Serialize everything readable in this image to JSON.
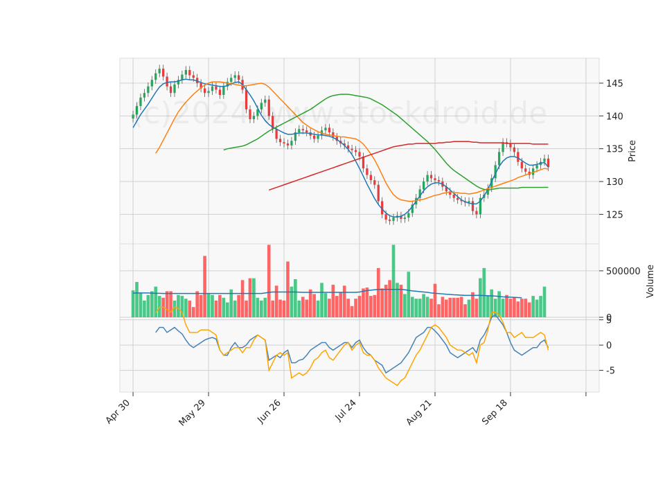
{
  "watermark": "(c)2024 www.stockdroid.de",
  "chart_data": [
    {
      "type": "candlestick",
      "panel": "price",
      "ylabel": "Price",
      "yticks": [
        125,
        130,
        135,
        140,
        145
      ],
      "ylim": [
        120.5,
        148.8
      ],
      "xlim": [
        -3.5,
        123.5
      ],
      "x_tick_labels": [
        "Apr 30",
        "May 29",
        "Jun 26",
        "Jul 24",
        "Aug 21",
        "Sep 18",
        ""
      ],
      "x_tick_positions": [
        0,
        20,
        40,
        60,
        80,
        100,
        120
      ],
      "grid": true,
      "up_color": "#26a65b",
      "down_color": "#e83b3b",
      "ohlc_close_values": [
        140.2,
        141.5,
        142.8,
        143.5,
        144.5,
        145.5,
        146.5,
        147.2,
        146.0,
        144.5,
        143.5,
        144.8,
        145.5,
        146.3,
        147.0,
        146.2,
        145.8,
        145.0,
        144.2,
        143.5,
        143.8,
        144.5,
        144.0,
        143.2,
        144.5,
        145.2,
        145.8,
        146.2,
        145.5,
        144.0,
        141.0,
        139.5,
        140.0,
        141.0,
        142.0,
        142.5,
        140.0,
        138.0,
        136.5,
        136.0,
        135.8,
        135.5,
        136.2,
        137.5,
        138.0,
        137.8,
        137.5,
        137.0,
        136.5,
        137.0,
        137.8,
        138.2,
        137.5,
        136.8,
        136.2,
        135.8,
        135.5,
        135.0,
        134.8,
        134.5,
        133.8,
        132.0,
        131.0,
        130.2,
        129.5,
        127.0,
        125.0,
        124.2,
        124.0,
        124.5,
        124.8,
        124.3,
        124.5,
        125.2,
        126.5,
        127.5,
        128.8,
        130.0,
        131.0,
        130.5,
        130.2,
        130.0,
        129.2,
        128.5,
        128.0,
        127.5,
        127.2,
        127.0,
        126.8,
        127.0,
        125.5,
        125.0,
        127.5,
        128.0,
        129.0,
        130.5,
        132.5,
        134.5,
        136.0,
        135.8,
        135.2,
        134.5,
        133.0,
        132.0,
        131.5,
        131.0,
        132.0,
        132.5,
        133.0,
        133.5,
        132.2
      ]
    },
    {
      "type": "line",
      "panel": "price",
      "series": [
        {
          "color": "#1f77b4",
          "values": [
            138.2,
            139.2,
            140.2,
            141.0,
            141.8,
            142.7,
            143.6,
            144.4,
            144.9,
            145.1,
            145.2,
            145.2,
            145.3,
            145.5,
            145.6,
            145.5,
            145.5,
            145.3,
            145.1,
            144.9,
            144.8,
            144.7,
            144.6,
            144.5,
            144.5,
            144.6,
            144.9,
            145.1,
            145.2,
            144.8,
            144.0,
            143.2,
            142.3,
            141.2,
            140.1,
            139.3,
            138.7,
            138.3,
            138.0,
            137.7,
            137.4,
            137.2,
            137.2,
            137.3,
            137.4,
            137.4,
            137.4,
            137.3,
            137.2,
            137.1,
            137.1,
            137.0,
            136.9,
            136.7,
            136.4,
            136.0,
            135.5,
            134.9,
            134.1,
            133.1,
            132.0,
            130.8,
            129.6,
            128.5,
            127.4,
            126.5,
            125.8,
            125.2,
            124.8,
            124.6,
            124.6,
            124.7,
            125.0,
            125.5,
            126.2,
            127.0,
            127.8,
            128.6,
            129.2,
            129.6,
            129.8,
            129.8,
            129.6,
            129.2,
            128.7,
            128.2,
            127.7,
            127.2,
            126.9,
            126.7,
            126.6,
            126.6,
            127.0,
            127.8,
            128.8,
            130.0,
            131.2,
            132.3,
            133.1,
            133.6,
            133.8,
            133.8,
            133.6,
            133.2,
            132.8,
            132.5,
            132.5,
            132.6,
            132.8,
            132.9,
            132.2
          ]
        },
        {
          "color": "#ff7f0e",
          "values": [
            134.3,
            135.2,
            136.3,
            137.4,
            138.5,
            139.6,
            140.6,
            141.4,
            142.1,
            142.7,
            143.3,
            143.8,
            144.3,
            144.7,
            145.0,
            145.2,
            145.2,
            145.2,
            145.1,
            145.0,
            144.9,
            144.8,
            144.7,
            144.6,
            144.6,
            144.7,
            144.8,
            144.9,
            145.0,
            144.8,
            144.4,
            143.8,
            143.2,
            142.6,
            142.0,
            141.4,
            140.8,
            140.2,
            139.6,
            139.0,
            138.6,
            138.2,
            137.9,
            137.6,
            137.4,
            137.2,
            137.1,
            137.0,
            136.9,
            136.8,
            136.8,
            136.7,
            136.6,
            136.5,
            136.2,
            135.7,
            135.0,
            134.2,
            133.3,
            132.2,
            131.0,
            129.8,
            128.8,
            128.0,
            127.5,
            127.2,
            127.1,
            127.0,
            127.0,
            127.1,
            127.2,
            127.3,
            127.5,
            127.7,
            127.9,
            128.0,
            128.2,
            128.3,
            128.4,
            128.3,
            128.3,
            128.2,
            128.2,
            128.1,
            128.2,
            128.3,
            128.5,
            128.7,
            128.9,
            129.1,
            129.3,
            129.5,
            129.7,
            129.9,
            130.1,
            130.3,
            130.6,
            130.8,
            131.0,
            131.2,
            131.4,
            131.6,
            131.8,
            132.0,
            131.9
          ]
        },
        {
          "color": "#2ca02c",
          "values": [
            134.8,
            135.0,
            135.1,
            135.2,
            135.3,
            135.4,
            135.6,
            135.9,
            136.2,
            136.5,
            136.9,
            137.3,
            137.7,
            138.0,
            138.3,
            138.6,
            138.9,
            139.2,
            139.5,
            139.8,
            140.1,
            140.4,
            140.7,
            141.0,
            141.4,
            141.8,
            142.2,
            142.6,
            142.9,
            143.1,
            143.2,
            143.3,
            143.3,
            143.3,
            143.2,
            143.1,
            143.0,
            142.9,
            142.8,
            142.6,
            142.3,
            142.0,
            141.7,
            141.3,
            140.9,
            140.5,
            140.1,
            139.6,
            139.1,
            138.6,
            138.1,
            137.6,
            137.1,
            136.6,
            136.1,
            135.5,
            134.9,
            134.2,
            133.5,
            132.8,
            132.2,
            131.7,
            131.3,
            130.9,
            130.5,
            130.1,
            129.7,
            129.3,
            129.0,
            128.8,
            128.7,
            128.8,
            128.9,
            129.0,
            129.0,
            129.0,
            129.0,
            129.0,
            129.0,
            129.1,
            129.1,
            129.1,
            129.1,
            129.1,
            129.1,
            129.1,
            129.1
          ]
        },
        {
          "color": "#d62728",
          "values": [
            128.7,
            128.9,
            129.1,
            129.3,
            129.5,
            129.7,
            129.9,
            130.1,
            130.3,
            130.5,
            130.7,
            130.9,
            131.1,
            131.3,
            131.5,
            131.7,
            131.9,
            132.1,
            132.3,
            132.5,
            132.7,
            132.9,
            133.1,
            133.3,
            133.5,
            133.7,
            133.9,
            134.1,
            134.3,
            134.5,
            134.7,
            134.9,
            135.1,
            135.3,
            135.4,
            135.5,
            135.6,
            135.7,
            135.7,
            135.8,
            135.8,
            135.8,
            135.8,
            135.8,
            135.8,
            135.9,
            135.9,
            136.0,
            136.0,
            136.1,
            136.1,
            136.1,
            136.1,
            136.1,
            136.0,
            136.0,
            135.9,
            135.9,
            135.9,
            135.9,
            135.9,
            135.9,
            135.9,
            135.8,
            135.8,
            135.8,
            135.8,
            135.8,
            135.8,
            135.8,
            135.7,
            135.7,
            135.7,
            135.7,
            135.7
          ]
        }
      ]
    },
    {
      "type": "bar",
      "panel": "volume",
      "ylabel": "Volume",
      "yticks": [
        0,
        500000
      ],
      "ylim": [
        0,
        790000
      ],
      "values": [
        290000,
        380000,
        260000,
        180000,
        240000,
        280000,
        330000,
        230000,
        210000,
        280000,
        280000,
        180000,
        240000,
        230000,
        200000,
        180000,
        110000,
        280000,
        240000,
        660000,
        250000,
        240000,
        180000,
        240000,
        210000,
        160000,
        300000,
        180000,
        240000,
        400000,
        180000,
        420000,
        420000,
        210000,
        180000,
        210000,
        780000,
        180000,
        340000,
        190000,
        180000,
        600000,
        330000,
        410000,
        180000,
        220000,
        190000,
        300000,
        250000,
        180000,
        370000,
        260000,
        200000,
        350000,
        230000,
        270000,
        340000,
        200000,
        120000,
        200000,
        230000,
        310000,
        320000,
        230000,
        240000,
        530000,
        310000,
        350000,
        400000,
        780000,
        370000,
        350000,
        250000,
        490000,
        220000,
        200000,
        200000,
        250000,
        220000,
        200000,
        360000,
        140000,
        220000,
        190000,
        210000,
        210000,
        210000,
        220000,
        140000,
        190000,
        270000,
        200000,
        420000,
        530000,
        230000,
        300000,
        200000,
        280000,
        200000,
        240000,
        200000,
        210000,
        170000,
        200000,
        200000,
        160000,
        230000,
        190000,
        230000,
        330000
      ],
      "ma_values": [
        260000,
        262000,
        262000,
        262000,
        262000,
        260000,
        258000,
        258000,
        256000,
        256000,
        256000,
        256000,
        256000,
        256000,
        256000,
        256000,
        256000,
        256000,
        256000,
        256000,
        256000,
        256000,
        256000,
        256000,
        256000,
        256000,
        256000,
        256000,
        256000,
        256000,
        256000,
        256000,
        256000,
        256000,
        256000,
        262000,
        268000,
        272000,
        272000,
        272000,
        272000,
        272000,
        272000,
        272000,
        270000,
        268000,
        268000,
        268000,
        268000,
        268000,
        268000,
        268000,
        268000,
        268000,
        268000,
        268000,
        268000,
        268000,
        268000,
        268000,
        272000,
        280000,
        288000,
        292000,
        296000,
        300000,
        300000,
        300000,
        300000,
        300000,
        300000,
        300000,
        296000,
        290000,
        284000,
        280000,
        276000,
        272000,
        268000,
        262000,
        258000,
        255000,
        252000,
        248000,
        245000,
        242000,
        240000,
        238000,
        236000,
        236000,
        236000,
        236000,
        236000,
        234000,
        232000,
        230000,
        228000,
        224000,
        220000,
        218000,
        216000,
        214000,
        212000,
        210000
      ]
    },
    {
      "type": "line",
      "panel": "oscillator",
      "yticks": [
        -5,
        0,
        5
      ],
      "ylim": [
        -9.3,
        5.5
      ],
      "series": [
        {
          "color": "#4682b4",
          "values": [
            2.5,
            3.5,
            3.5,
            2.5,
            3.0,
            3.5,
            2.8,
            2.2,
            1.0,
            0.0,
            -0.5,
            0.0,
            0.5,
            1.0,
            1.3,
            1.5,
            1.2,
            -1.0,
            -2.0,
            -2.0,
            -0.5,
            0.5,
            -0.5,
            -0.5,
            0.0,
            1.0,
            1.5,
            2.0,
            1.5,
            1.0,
            -3.0,
            -2.5,
            -2.0,
            -2.5,
            -1.5,
            -1.0,
            -3.5,
            -3.5,
            -3.0,
            -2.8,
            -2.0,
            -1.0,
            -0.5,
            0.0,
            0.5,
            0.5,
            -0.5,
            -1.0,
            -0.5,
            0.0,
            0.5,
            0.5,
            -0.5,
            0.5,
            1.0,
            -0.5,
            -1.5,
            -2.0,
            -3.0,
            -3.5,
            -4.0,
            -5.5,
            -5.0,
            -4.5,
            -4.0,
            -3.5,
            -2.5,
            -1.5,
            0.0,
            1.5,
            2.0,
            2.5,
            3.5,
            3.5,
            2.8,
            2.0,
            1.0,
            0.0,
            -1.5,
            -2.0,
            -2.5,
            -2.0,
            -1.5,
            -1.0,
            -0.5,
            -1.5,
            1.0,
            2.0,
            3.5,
            5.5,
            6.0,
            5.0,
            4.0,
            2.5,
            0.5,
            -1.0,
            -1.5,
            -2.0,
            -1.5,
            -1.0,
            -0.5,
            -0.5,
            0.5,
            1.0,
            -0.5
          ]
        },
        {
          "color": "#ffa500",
          "values": [
            6.3,
            7.5,
            7.5,
            7.0,
            6.5,
            7.5,
            7.3,
            6.5,
            4.0,
            2.5,
            2.5,
            2.5,
            3.0,
            3.0,
            3.0,
            2.5,
            2.0,
            -1.0,
            -2.0,
            -1.5,
            -1.0,
            -0.5,
            -0.5,
            -1.5,
            -0.5,
            -0.5,
            1.0,
            2.0,
            1.5,
            1.0,
            -5.0,
            -3.5,
            -2.0,
            -1.5,
            -2.0,
            -1.5,
            -6.5,
            -6.0,
            -5.5,
            -6.0,
            -5.5,
            -4.5,
            -3.0,
            -2.5,
            -1.5,
            -1.0,
            -2.5,
            -3.0,
            -2.0,
            -1.0,
            0.0,
            0.5,
            -1.0,
            0.0,
            0.5,
            -1.5,
            -2.0,
            -2.0,
            -3.0,
            -4.5,
            -5.5,
            -6.5,
            -7.0,
            -7.5,
            -8.0,
            -7.0,
            -6.5,
            -5.0,
            -3.5,
            -2.0,
            -1.0,
            0.5,
            2.0,
            3.5,
            4.0,
            3.5,
            2.5,
            1.5,
            0.0,
            -0.5,
            -1.0,
            -1.0,
            -1.5,
            -2.0,
            -1.5,
            -3.5,
            0.0,
            0.5,
            3.0,
            6.5,
            6.5,
            6.0,
            4.5,
            2.5,
            2.5,
            1.5,
            2.0,
            2.5,
            1.5,
            1.5,
            1.5,
            2.0,
            2.5,
            2.0,
            -1.0
          ]
        }
      ]
    }
  ]
}
